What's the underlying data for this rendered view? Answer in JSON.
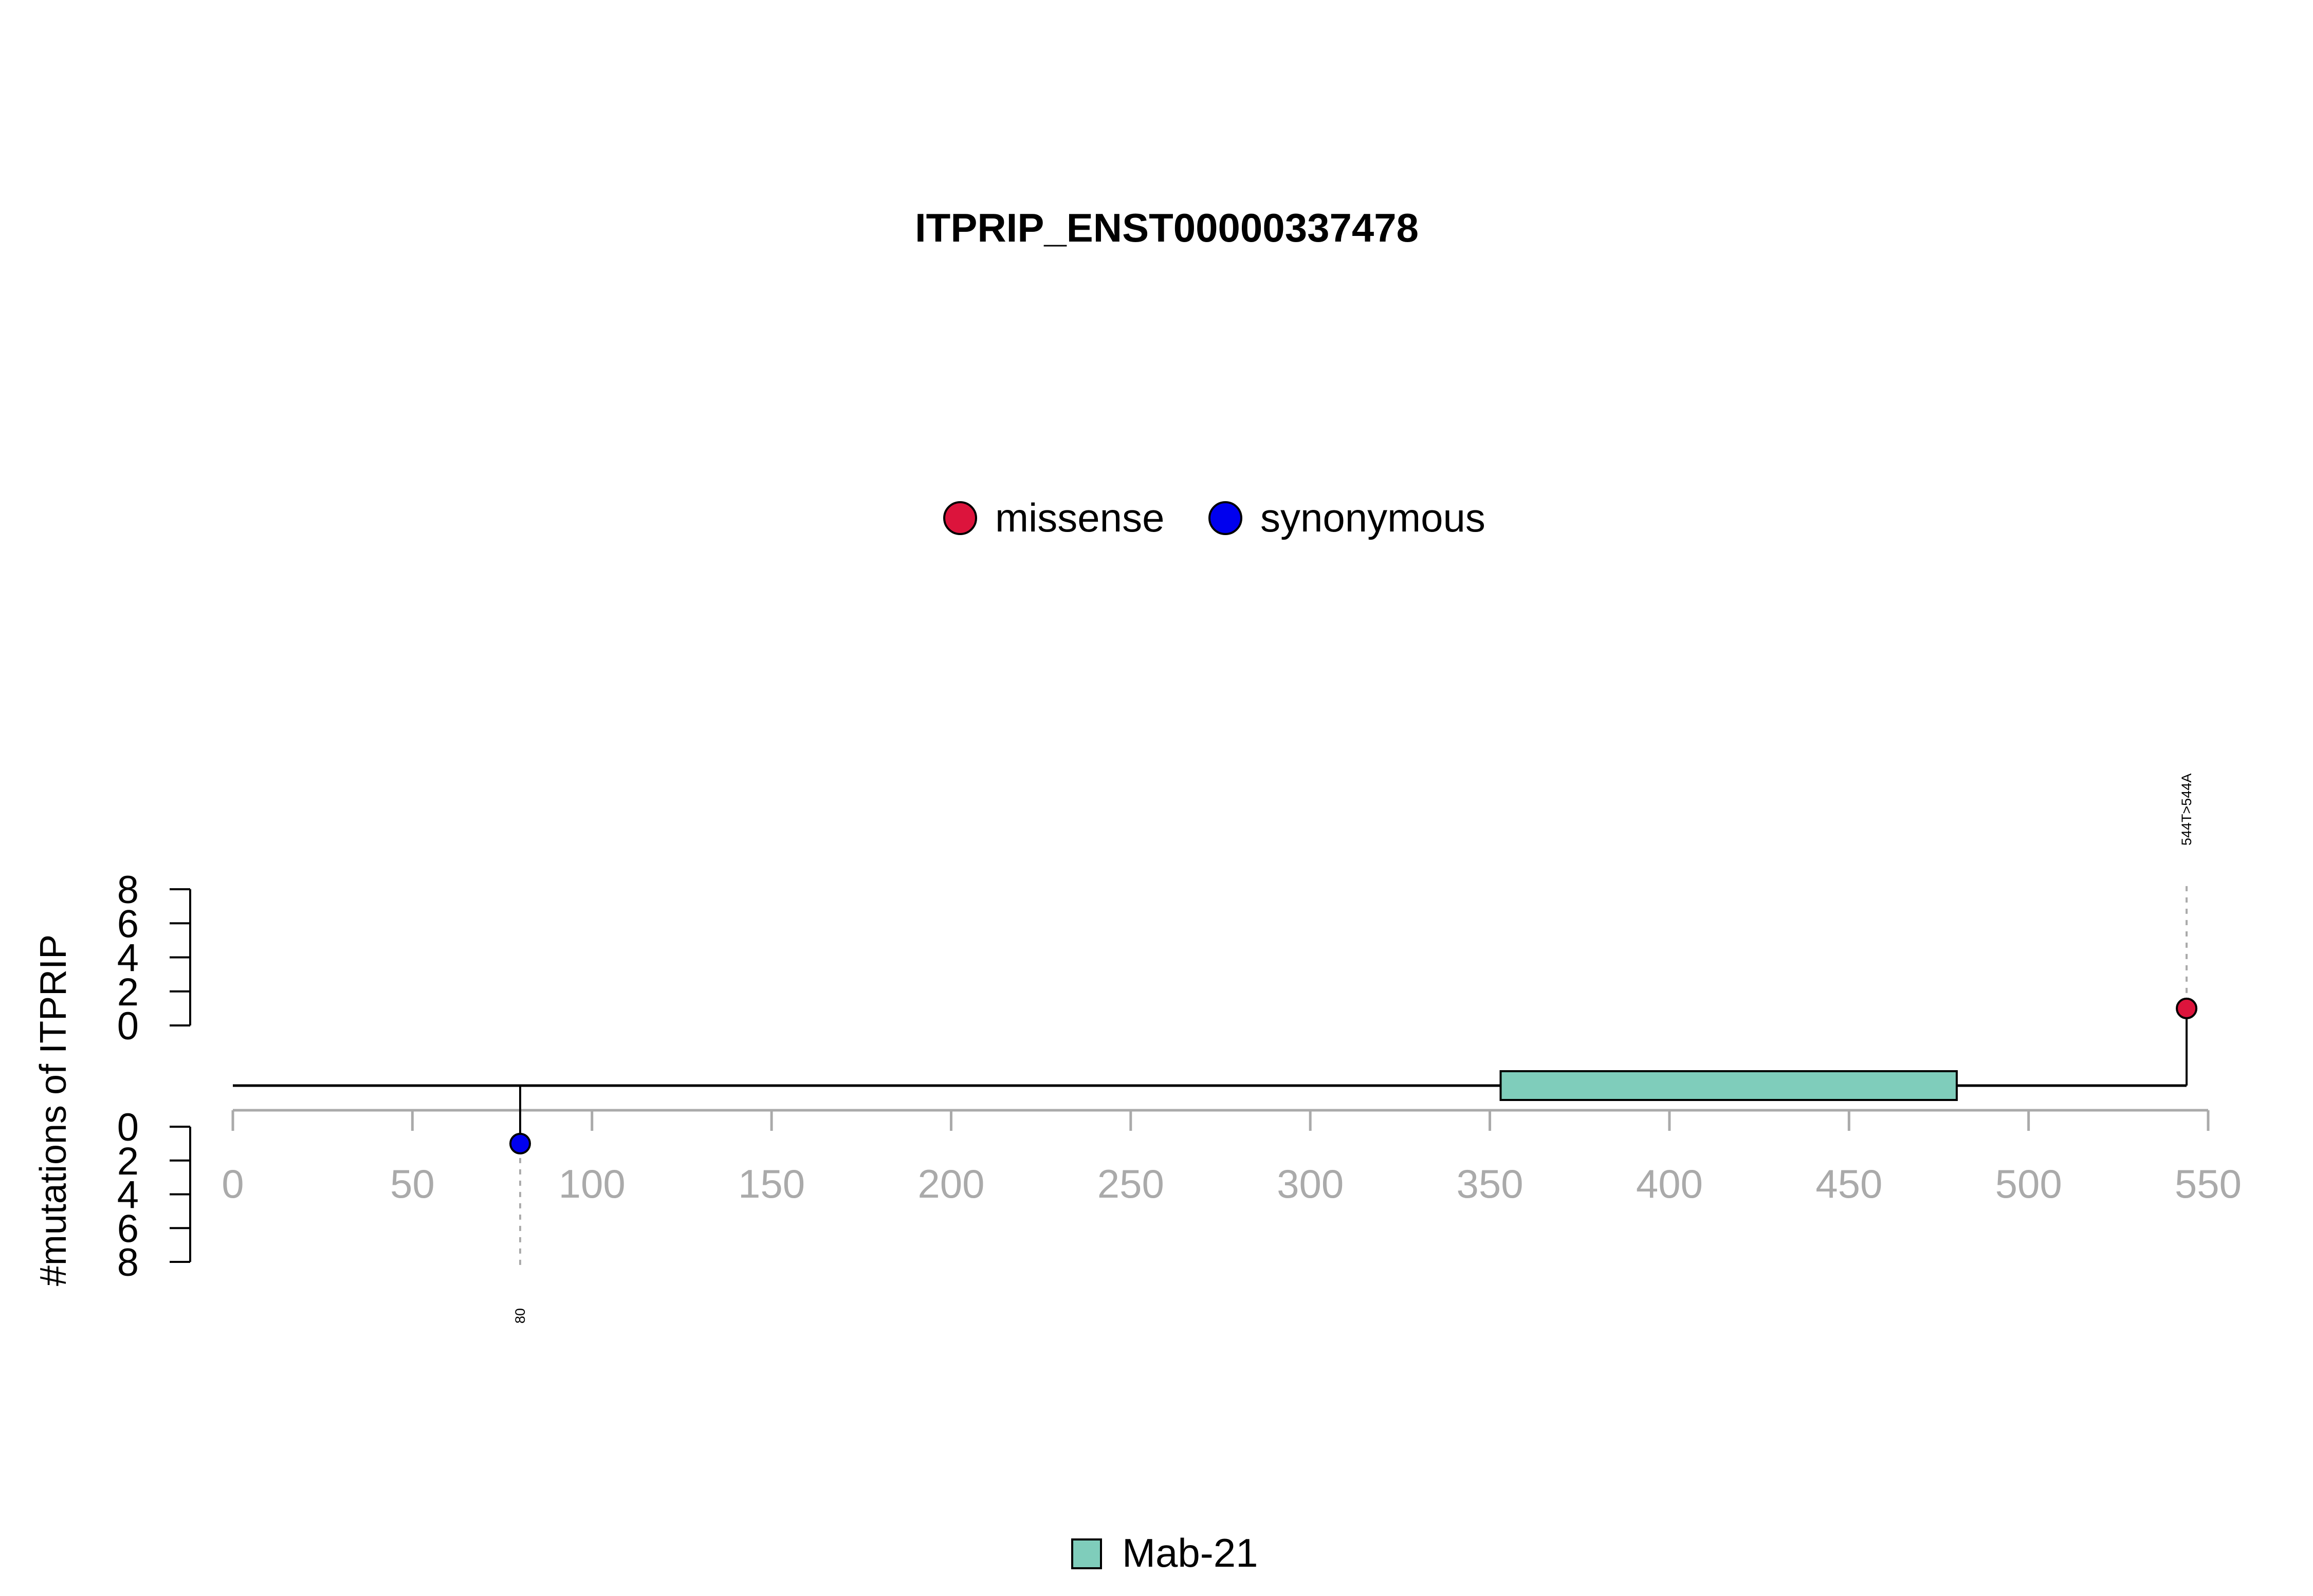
{
  "chart_data": {
    "type": "lollipop",
    "title": "ITPRIP_ENST00000337478",
    "ylabel": "#mutations of ITPRIP",
    "x_axis": {
      "range": [
        0,
        550
      ],
      "ticks": [
        0,
        50,
        100,
        150,
        200,
        250,
        300,
        350,
        400,
        450,
        500,
        550
      ],
      "color": "#aaaaaa"
    },
    "y_axis": {
      "range": [
        0,
        8
      ],
      "ticks": [
        0,
        2,
        4,
        6,
        8
      ],
      "mirrored_below_track": true
    },
    "legend_top": [
      {
        "label": "missense",
        "color": "#dc143c"
      },
      {
        "label": "synonymous",
        "color": "#0000ee"
      }
    ],
    "legend_bottom": [
      {
        "label": "Mab-21",
        "color": "#7fcdbb"
      }
    ],
    "protein_length": 544,
    "domains": [
      {
        "name": "Mab-21",
        "start": 353,
        "end": 480,
        "color": "#7fcdbb"
      }
    ],
    "mutations": [
      {
        "position": 544,
        "count": 1,
        "type": "missense",
        "side": "top",
        "label": "544T>544A",
        "color": "#dc143c"
      },
      {
        "position": 80,
        "count": 1,
        "type": "synonymous",
        "side": "bottom",
        "label": "80",
        "color": "#0000ee"
      }
    ]
  }
}
